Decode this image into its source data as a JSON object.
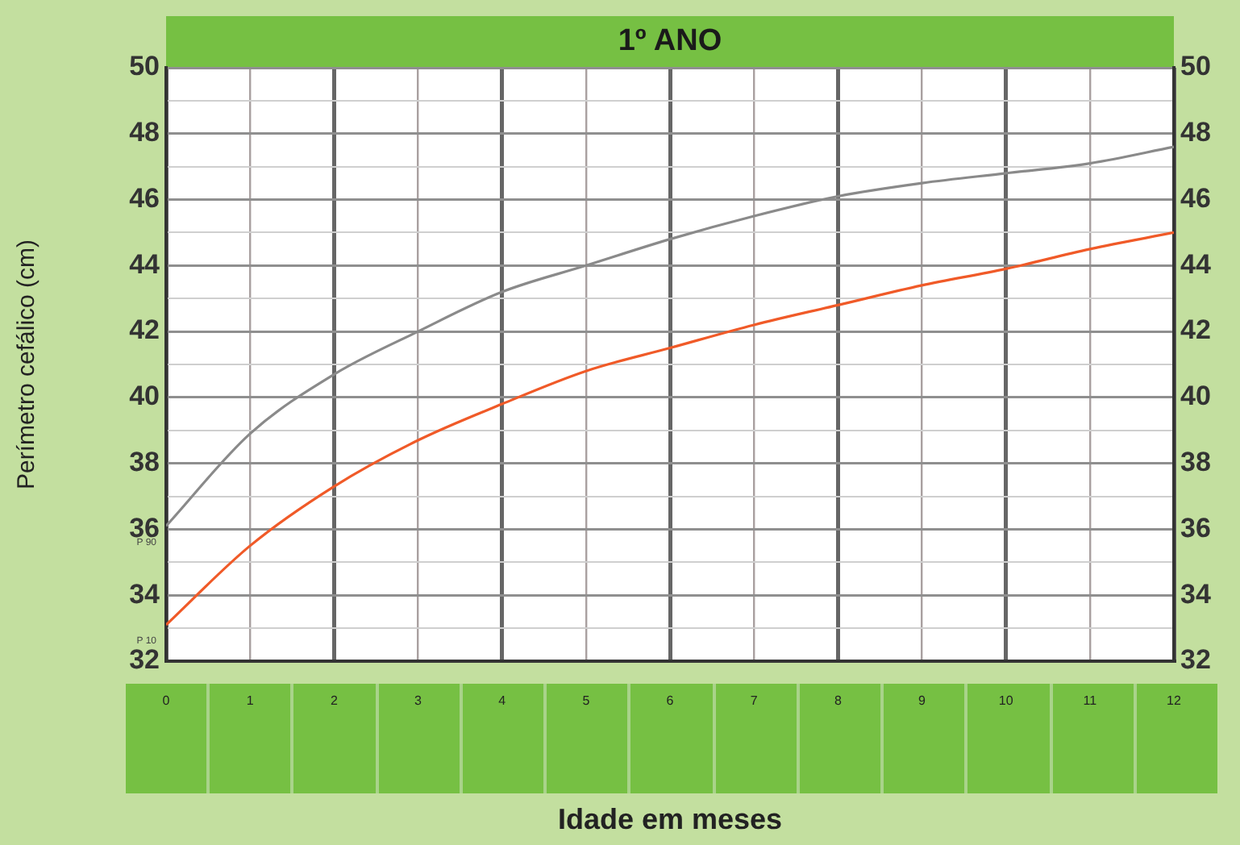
{
  "chart_data": {
    "type": "line",
    "title": "1º ANO",
    "xlabel": "Idade em meses",
    "ylabel": "Perímetro cefálico (cm)",
    "x": [
      0,
      1,
      2,
      3,
      4,
      5,
      6,
      7,
      8,
      9,
      10,
      11,
      12
    ],
    "series": [
      {
        "name": "P 90",
        "color": "#8a8a8a",
        "values": [
          36.1,
          38.9,
          40.7,
          42.0,
          43.2,
          44.0,
          44.8,
          45.5,
          46.1,
          46.5,
          46.8,
          47.1,
          47.6
        ]
      },
      {
        "name": "P 10",
        "color": "#f05a28",
        "values": [
          33.1,
          35.5,
          37.3,
          38.7,
          39.8,
          40.8,
          41.5,
          42.2,
          42.8,
          43.4,
          43.9,
          44.5,
          45.0
        ]
      }
    ],
    "xlim": [
      0,
      12
    ],
    "xticks": [
      0,
      1,
      2,
      3,
      4,
      5,
      6,
      7,
      8,
      9,
      10,
      11,
      12
    ],
    "ylim": [
      32,
      50
    ],
    "yticks": [
      32,
      {
        "value": 33,
        "label": null
      },
      34,
      {
        "value": 35,
        "label": null
      },
      36,
      {
        "value": 37,
        "label": null
      },
      38,
      {
        "value": 39,
        "label": null
      },
      40,
      {
        "value": 41,
        "label": null
      },
      42,
      {
        "value": 43,
        "label": null
      },
      44,
      {
        "value": 45,
        "label": null
      },
      46,
      {
        "value": 47,
        "label": null
      },
      48,
      {
        "value": 49,
        "label": null
      },
      50
    ],
    "y2lim": [
      32,
      50
    ],
    "y2ticks": [
      32,
      34,
      36,
      38,
      40,
      42,
      44,
      46,
      48,
      50
    ],
    "grid": true,
    "legend": false,
    "marker": "none",
    "line_style": "solid"
  }
}
